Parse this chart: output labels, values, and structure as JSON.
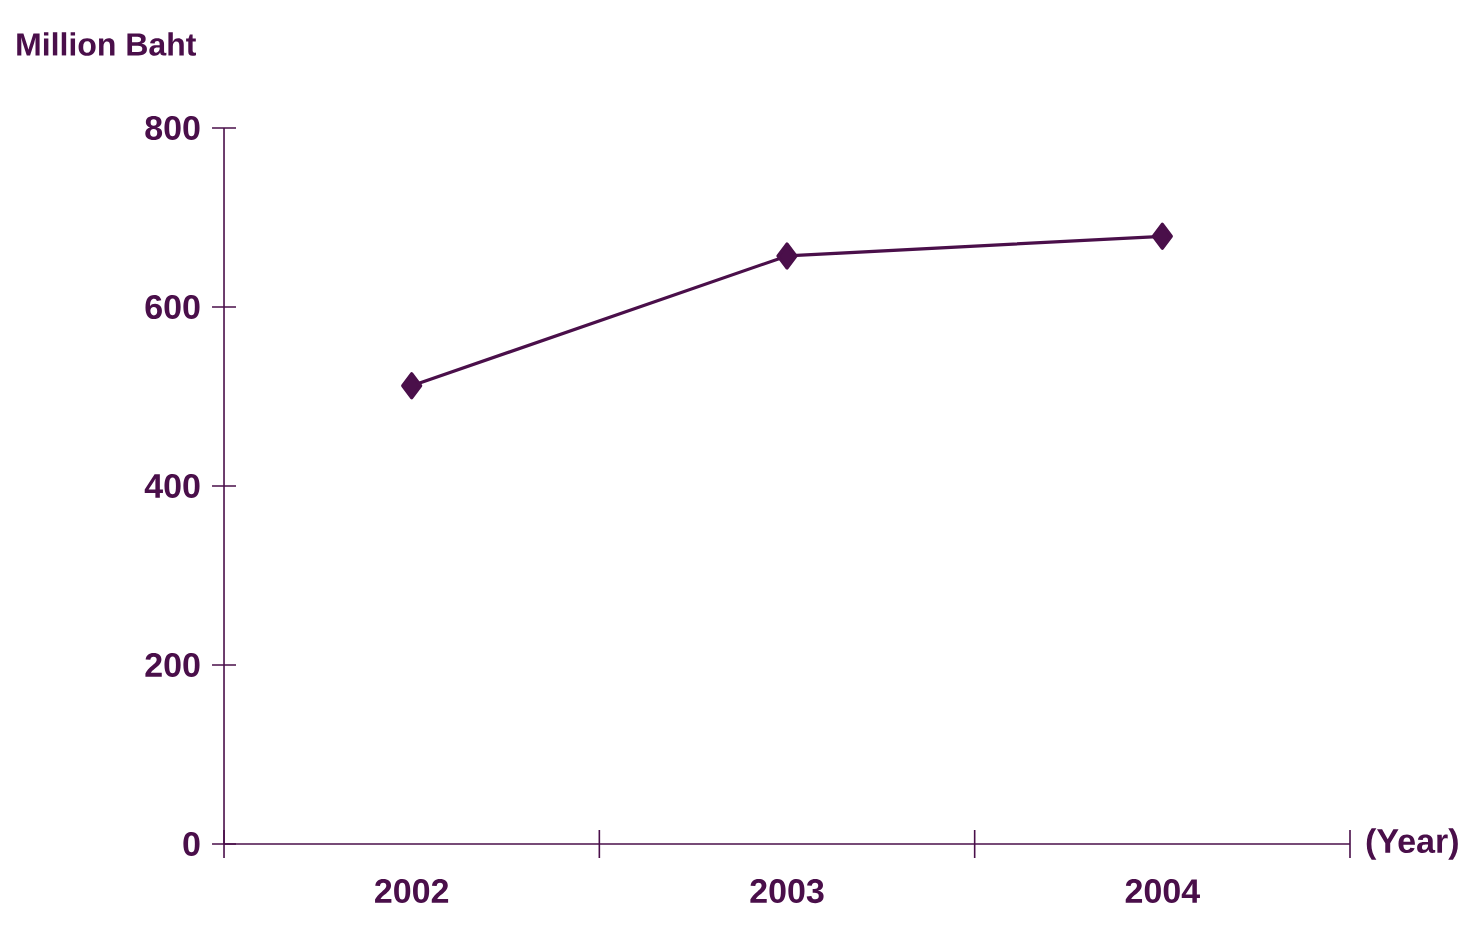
{
  "chart_data": {
    "type": "line",
    "ylabel": "Million Baht",
    "xlabel": "(Year)",
    "categories": [
      "2002",
      "2003",
      "2004"
    ],
    "series": [
      {
        "color": "#4a0f4a",
        "values": [
          512,
          657,
          679
        ]
      }
    ],
    "ylim": [
      0,
      800
    ],
    "yticks": [
      0,
      200,
      400,
      600,
      800
    ],
    "marker": "diamond",
    "line_style": "solid",
    "grid": false
  }
}
